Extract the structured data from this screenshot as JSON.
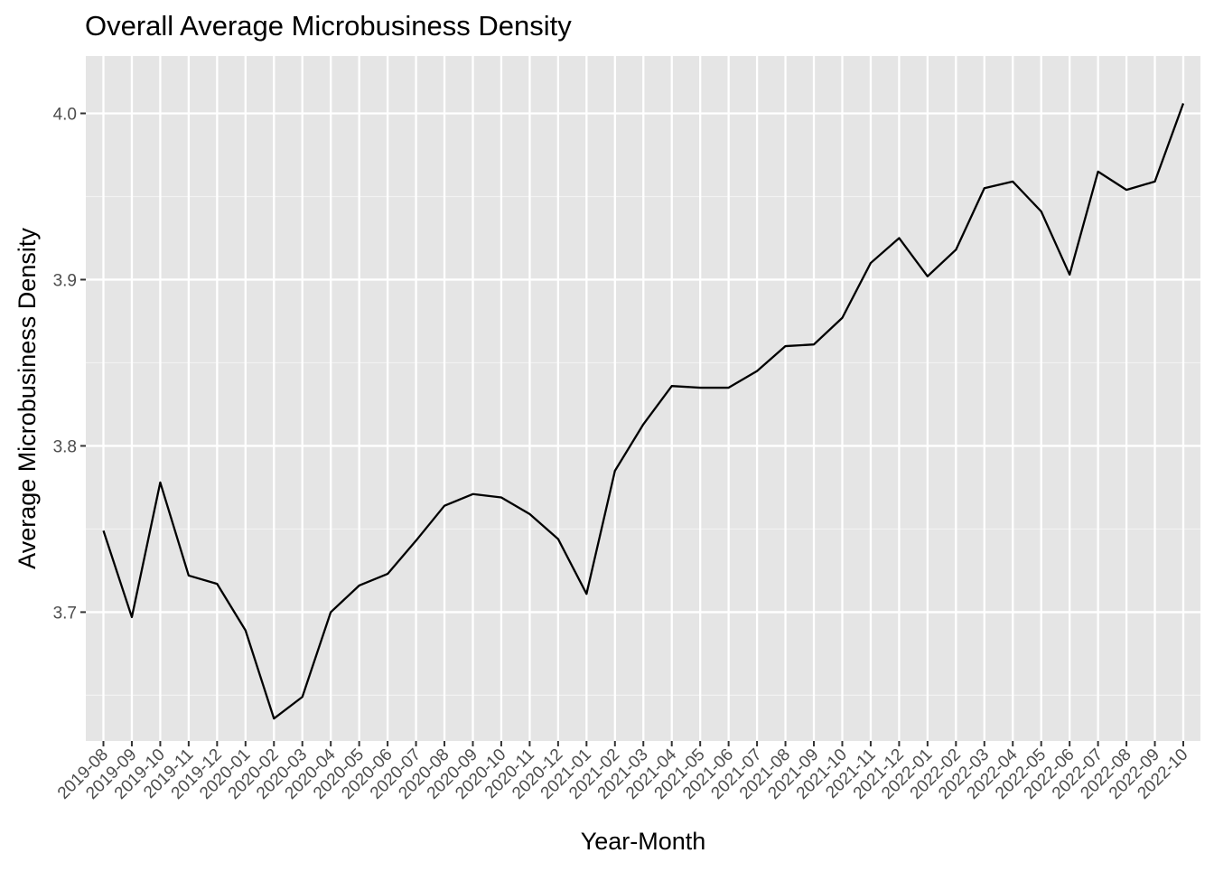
{
  "chart_data": {
    "type": "line",
    "title": "Overall Average Microbusiness Density",
    "xlabel": "Year-Month",
    "ylabel": "Average Microbusiness Density",
    "categories": [
      "2019-08",
      "2019-09",
      "2019-10",
      "2019-11",
      "2019-12",
      "2020-01",
      "2020-02",
      "2020-03",
      "2020-04",
      "2020-05",
      "2020-06",
      "2020-07",
      "2020-08",
      "2020-09",
      "2020-10",
      "2020-11",
      "2020-12",
      "2021-01",
      "2021-02",
      "2021-03",
      "2021-04",
      "2021-05",
      "2021-06",
      "2021-07",
      "2021-08",
      "2021-09",
      "2021-10",
      "2021-11",
      "2021-12",
      "2022-01",
      "2022-02",
      "2022-03",
      "2022-04",
      "2022-05",
      "2022-06",
      "2022-07",
      "2022-08",
      "2022-09",
      "2022-10"
    ],
    "series": [
      {
        "values": [
          3.749,
          3.697,
          3.778,
          3.722,
          3.717,
          3.689,
          3.636,
          3.649,
          3.7,
          3.716,
          3.723,
          3.743,
          3.764,
          3.771,
          3.769,
          3.759,
          3.744,
          3.711,
          3.785,
          3.813,
          3.836,
          3.835,
          3.835,
          3.845,
          3.86,
          3.861,
          3.877,
          3.91,
          3.925,
          3.902,
          3.918,
          3.955,
          3.959,
          3.941,
          3.903,
          3.965,
          3.954,
          3.959,
          4.006
        ]
      }
    ],
    "y_ticks": [
      "3.7",
      "3.8",
      "3.9",
      "4.0"
    ],
    "ylim": [
      3.6225,
      4.0345
    ],
    "grid": true,
    "legend": "none",
    "colors": {
      "panel_background": "#e5e5e5",
      "grid_major": "#ffffff",
      "grid_minor": "#f2f2f2",
      "line": "#000000",
      "axis_text": "#4d4d4d",
      "title_text": "#000000",
      "tick_mark": "#333333"
    }
  }
}
